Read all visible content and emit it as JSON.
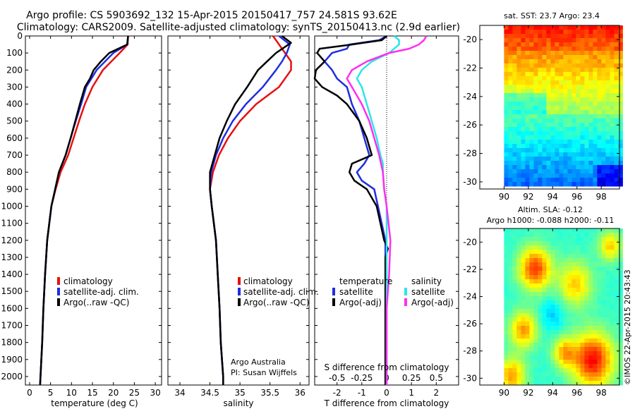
{
  "header": {
    "line1": "Argo profile: CS 5903692_132 15-Apr-2015 20150417_757 24.581S 93.62E",
    "line2": "Climatology: CARS2009. Satellite-adjusted climatology: synTS_20150413.nc (2.9d earlier)"
  },
  "colors": {
    "climatology": "#e8100f",
    "satellite_adj": "#1f2ee0",
    "argo": "#000000",
    "salinity_satellite": "#2ce6e6",
    "salinity_argo": "#ff2ef0"
  },
  "chart_data": [
    {
      "type": "line",
      "name": "temperature-profile",
      "xlabel": "temperature (deg C)",
      "ylabel": "",
      "xlim": [
        -1,
        31.5
      ],
      "ylim": [
        2050,
        0
      ],
      "xticks": [
        0,
        5,
        10,
        15,
        20,
        25,
        30
      ],
      "yticks": [
        0,
        100,
        200,
        300,
        400,
        500,
        600,
        700,
        800,
        900,
        1000,
        1100,
        1200,
        1300,
        1400,
        1500,
        1600,
        1700,
        1800,
        1900,
        2000
      ],
      "legend": [
        "climatology",
        "satellite-adj. clim.",
        "Argo(..raw -QC)"
      ],
      "series": [
        {
          "name": "climatology",
          "depth": [
            0,
            50,
            100,
            150,
            200,
            300,
            400,
            500,
            600,
            700,
            800,
            900,
            1000,
            1200,
            1400,
            1600,
            1800,
            2000,
            2050
          ],
          "values": [
            23.5,
            23.4,
            21.5,
            19.5,
            17.5,
            15.0,
            13.2,
            11.8,
            10.5,
            9.2,
            7.4,
            6.2,
            5.2,
            4.2,
            3.7,
            3.3,
            3.0,
            2.6,
            2.5
          ]
        },
        {
          "name": "satellite-adj. clim.",
          "depth": [
            0,
            50,
            100,
            150,
            200,
            300,
            400,
            500,
            600,
            700,
            800,
            900,
            1000,
            1200,
            1400,
            1600,
            1800,
            2000,
            2050
          ],
          "values": [
            23.5,
            23.3,
            20.0,
            18.0,
            16.0,
            13.5,
            12.3,
            11.0,
            9.8,
            8.6,
            7.0,
            6.1,
            5.2,
            4.2,
            3.7,
            3.3,
            3.0,
            2.6,
            2.5
          ]
        },
        {
          "name": "Argo(..raw -QC)",
          "depth": [
            0,
            50,
            100,
            150,
            200,
            250,
            300,
            400,
            500,
            600,
            700,
            800,
            900,
            1000,
            1200,
            1400,
            1600,
            1800,
            2000,
            2050
          ],
          "values": [
            23.5,
            23.3,
            19.0,
            17.0,
            15.3,
            14.4,
            13.2,
            12.0,
            10.9,
            9.8,
            8.6,
            7.0,
            6.1,
            5.2,
            4.2,
            3.7,
            3.3,
            3.0,
            2.6,
            2.5
          ]
        }
      ]
    },
    {
      "type": "line",
      "name": "salinity-profile",
      "xlabel": "salinity",
      "ylabel": "",
      "xlim": [
        33.8,
        36.15
      ],
      "ylim": [
        2050,
        0
      ],
      "xticks": [
        34,
        34.5,
        35,
        35.5,
        36
      ],
      "legend": [
        "climatology",
        "satellite-adj. clim.",
        "Argo(..raw -QC)"
      ],
      "annotation": [
        "Argo Australia",
        "PI: Susan Wijffels"
      ],
      "series": [
        {
          "name": "climatology",
          "depth": [
            0,
            100,
            150,
            200,
            300,
            400,
            500,
            600,
            700,
            800,
            900,
            1000,
            1200,
            1400,
            1600,
            1800,
            2000,
            2050
          ],
          "values": [
            35.55,
            35.75,
            35.85,
            35.85,
            35.65,
            35.27,
            35.0,
            34.8,
            34.65,
            34.55,
            34.5,
            34.53,
            34.6,
            34.63,
            34.66,
            34.68,
            34.72,
            34.72
          ]
        },
        {
          "name": "satellite-adj. clim.",
          "depth": [
            0,
            50,
            100,
            150,
            200,
            300,
            400,
            500,
            600,
            700,
            800,
            900,
            1000,
            1200,
            1400,
            1600,
            1800,
            2000,
            2050
          ],
          "values": [
            35.65,
            35.83,
            35.78,
            35.7,
            35.6,
            35.38,
            35.1,
            34.88,
            34.72,
            34.6,
            34.52,
            34.5,
            34.53,
            34.6,
            34.63,
            34.66,
            34.68,
            34.72,
            34.72
          ]
        },
        {
          "name": "Argo(..raw -QC)",
          "depth": [
            0,
            40,
            100,
            150,
            200,
            300,
            400,
            500,
            600,
            700,
            800,
            900,
            1000,
            1200,
            1400,
            1600,
            1800,
            2000,
            2050
          ],
          "values": [
            35.7,
            35.85,
            35.6,
            35.45,
            35.3,
            35.12,
            34.92,
            34.78,
            34.66,
            34.58,
            34.5,
            34.5,
            34.53,
            34.6,
            34.63,
            34.66,
            34.68,
            34.72,
            34.72
          ]
        }
      ]
    },
    {
      "type": "line",
      "name": "difference-profile",
      "xlabel": "T difference from climatology",
      "xlabel_top": "S difference from climatology",
      "xlim": [
        -2.9,
        2.9
      ],
      "ylim": [
        2050,
        0
      ],
      "xticks": [
        -2,
        -1,
        0,
        1,
        2
      ],
      "top_ticks": [
        "-0.5",
        "-0.25",
        "0",
        "0.25",
        "0.5"
      ],
      "legend_groups": {
        "temperature": [
          "satellite",
          "Argo(-adj)"
        ],
        "salinity": [
          "satellite",
          "Argo(-adj)"
        ]
      },
      "series": [
        {
          "name": "temperature satellite",
          "depth": [
            0,
            25,
            50,
            75,
            100,
            150,
            200,
            250,
            300,
            400,
            500,
            600,
            700,
            750,
            800,
            850,
            900,
            1000,
            1100,
            1200,
            1400,
            1600,
            1800,
            2000,
            2050
          ],
          "values": [
            0,
            -0.3,
            -1.5,
            -1.6,
            -2.2,
            -2.5,
            -2.2,
            -2.0,
            -1.6,
            -1.4,
            -1.1,
            -0.9,
            -0.7,
            -0.9,
            -1.2,
            -1.0,
            -0.5,
            -0.35,
            -0.2,
            -0.05,
            -0.05,
            -0.05,
            -0.05,
            -0.05,
            -0.05
          ]
        },
        {
          "name": "temperature Argo(-adj)",
          "depth": [
            0,
            25,
            50,
            75,
            100,
            150,
            200,
            250,
            300,
            350,
            400,
            500,
            600,
            700,
            750,
            800,
            850,
            900,
            1000,
            1100,
            1200,
            1250,
            1300,
            1400,
            1600,
            1800,
            2000,
            2050
          ],
          "values": [
            0,
            -0.2,
            -1.4,
            -2.7,
            -2.8,
            -2.5,
            -2.85,
            -2.9,
            -2.6,
            -2.0,
            -1.6,
            -1.1,
            -0.8,
            -0.6,
            -1.4,
            -1.5,
            -1.3,
            -0.8,
            -0.4,
            -0.25,
            -0.1,
            0.05,
            -0.05,
            -0.05,
            -0.05,
            -0.05,
            -0.05,
            -0.05
          ]
        },
        {
          "name": "salinity satellite",
          "depth": [
            0,
            25,
            50,
            75,
            100,
            150,
            200,
            250,
            300,
            350,
            400,
            500,
            600,
            700,
            750,
            800,
            900,
            1000,
            1200,
            1400,
            1600,
            1800,
            2000,
            2050
          ],
          "values": [
            0.3,
            0.5,
            0.5,
            0.3,
            0.1,
            -0.6,
            -1.0,
            -1.2,
            -1.0,
            -0.9,
            -0.8,
            -0.6,
            -0.4,
            -0.25,
            -0.15,
            -0.15,
            -0.1,
            0,
            0,
            0,
            0,
            0,
            0,
            0
          ]
        },
        {
          "name": "salinity Argo(-adj)",
          "depth": [
            0,
            25,
            50,
            75,
            100,
            150,
            200,
            250,
            300,
            350,
            400,
            500,
            600,
            700,
            800,
            900,
            1000,
            1200,
            1400,
            1600,
            1800,
            2000,
            2050
          ],
          "values": [
            1.6,
            1.5,
            1.3,
            0.9,
            0.1,
            -0.8,
            -1.4,
            -1.6,
            -1.4,
            -1.2,
            -1.0,
            -0.7,
            -0.5,
            -0.3,
            -0.15,
            -0.1,
            0,
            0.15,
            0.1,
            0,
            0,
            0,
            0
          ]
        }
      ]
    },
    {
      "type": "heatmap",
      "name": "sst-map",
      "title": "sat. SST: 23.7  Argo: 23.4",
      "xlim": [
        88,
        99.5
      ],
      "ylim": [
        -30.5,
        -19
      ],
      "xticks": [
        90,
        92,
        94,
        96,
        98
      ],
      "yticks": [
        -20,
        -22,
        -24,
        -26,
        -28,
        -30
      ]
    },
    {
      "type": "heatmap",
      "name": "sla-map",
      "title_lines": [
        "Altim. SLA: -0.12",
        "Argo h1000: -0.088 h2000: -0.11"
      ],
      "xlim": [
        88,
        99.5
      ],
      "ylim": [
        -30.5,
        -19
      ],
      "xticks": [
        90,
        92,
        94,
        96,
        98
      ],
      "yticks": [
        -20,
        -22,
        -24,
        -26,
        -28,
        -30
      ]
    }
  ],
  "footer_stamp": "©IMOS 22-Apr-2015 20:43:43"
}
